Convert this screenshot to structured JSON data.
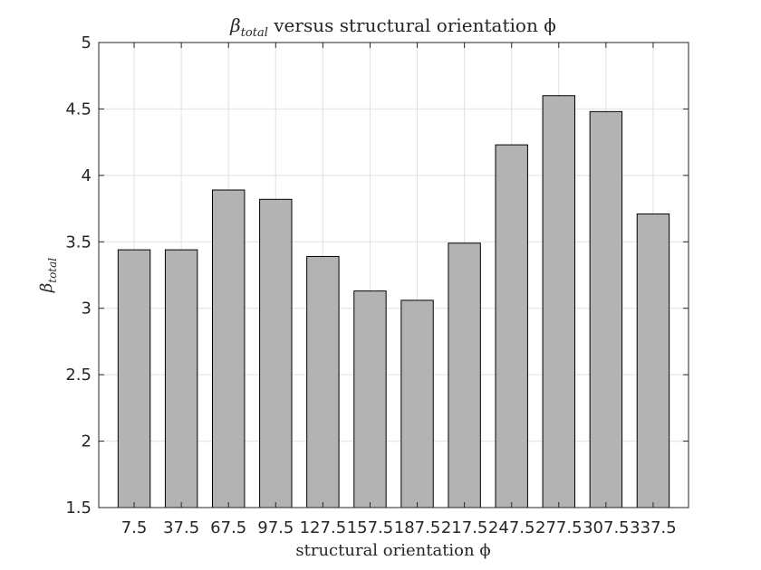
{
  "chart_data": {
    "type": "bar",
    "title": "βtotal versus structural orientation ϕ",
    "title_main": "β",
    "title_sub": "total",
    "title_rest": " versus structural orientation ϕ",
    "xlabel": "structural orientation ϕ",
    "ylabel": "βtotal",
    "ylabel_main": "β",
    "ylabel_sub": "total",
    "categories": [
      "7.5",
      "37.5",
      "67.5",
      "97.5",
      "127.5",
      "157.5",
      "187.5",
      "217.5",
      "247.5",
      "277.5",
      "307.5",
      "337.5"
    ],
    "values": [
      3.44,
      3.44,
      3.89,
      3.82,
      3.39,
      3.13,
      3.06,
      3.49,
      4.23,
      4.6,
      4.48,
      3.71
    ],
    "ylim": [
      1.5,
      5
    ],
    "yticks": [
      1.5,
      2,
      2.5,
      3,
      3.5,
      4,
      4.5,
      5
    ],
    "ytick_labels": [
      "1.5",
      "2",
      "2.5",
      "3",
      "3.5",
      "4",
      "4.5",
      "5"
    ],
    "grid": true,
    "bar_color": "#b3b3b3",
    "bar_edge_color": "#000000",
    "grid_color": "#e0e0e0",
    "axis_color": "#262626"
  }
}
